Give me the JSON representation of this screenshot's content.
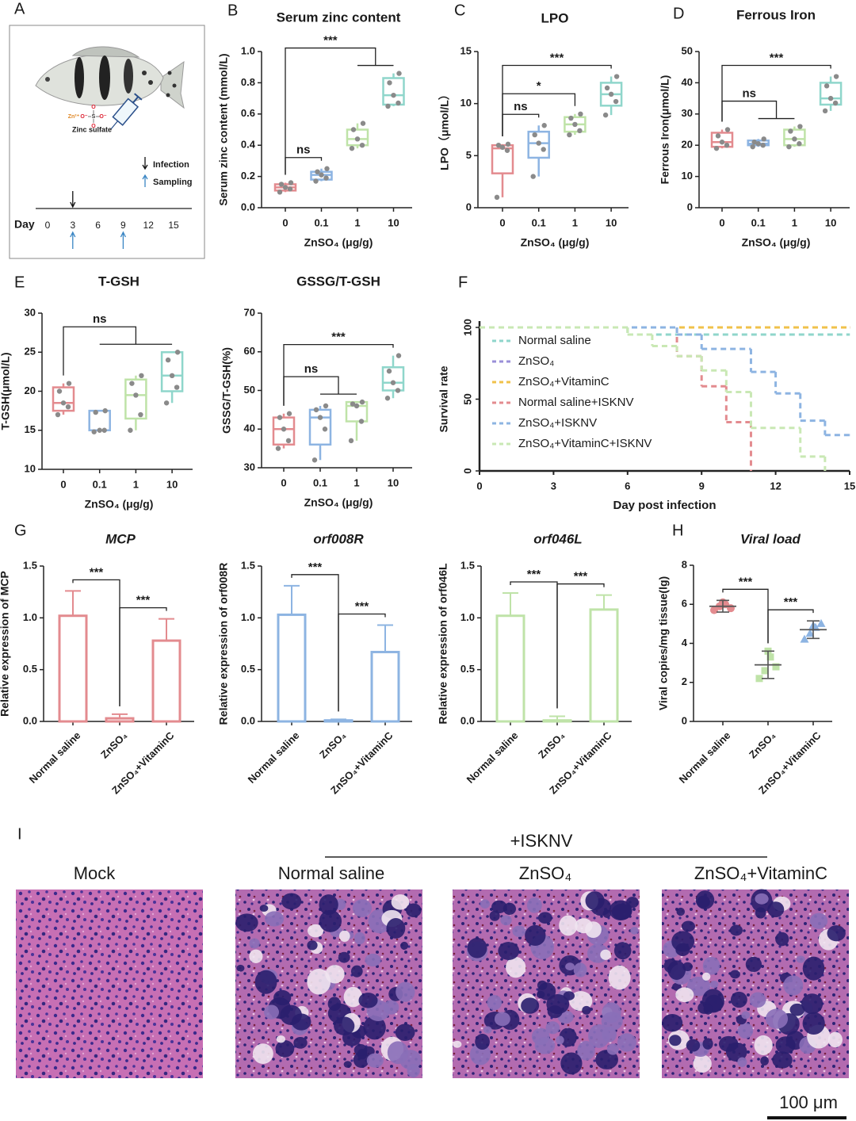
{
  "panel_labels": [
    "A",
    "B",
    "C",
    "D",
    "E",
    "F",
    "G",
    "H",
    "I"
  ],
  "panel_a": {
    "compound": "Zinc sulfate",
    "structure_labels": [
      "Zn²⁺",
      "O⁻",
      "S",
      "O⁻",
      "O",
      "O"
    ],
    "legend": [
      "Infection",
      "Sampling"
    ],
    "timeline_label": "Day",
    "days": [
      0,
      3,
      6,
      9,
      12,
      15
    ],
    "infection_days": [
      3
    ],
    "sampling_days": [
      3,
      9
    ]
  },
  "panel_i": {
    "group_label": "+ISKNV",
    "titles": [
      "Mock",
      "Normal saline",
      "ZnSO₄",
      "ZnSO₄+VitaminC"
    ],
    "scale_bar": "100 μm"
  },
  "chart_data": [
    {
      "type": "box",
      "title": "Serum zinc content",
      "ylabel": "Serum zinc content (mmol/L)",
      "xlabel": "ZnSO₄ (μg/g)",
      "categories": [
        "0",
        "0.1",
        "1",
        "10"
      ],
      "colors": [
        "#e38b8f",
        "#8db4e2",
        "#bfe3a8",
        "#8fd6cb"
      ],
      "ylim": [
        0,
        1
      ],
      "yticks": [
        {
          "value": 0,
          "label": "0.0"
        },
        0.2,
        0.4,
        0.6,
        0.8,
        {
          "value": 1,
          "label": "1.0"
        }
      ],
      "boxes": [
        {
          "min": 0.1,
          "q1": 0.11,
          "median": 0.13,
          "q3": 0.15,
          "max": 0.16,
          "points": [
            0.1,
            0.12,
            0.13,
            0.15,
            0.16
          ]
        },
        {
          "min": 0.17,
          "q1": 0.18,
          "median": 0.21,
          "q3": 0.23,
          "max": 0.25,
          "points": [
            0.17,
            0.19,
            0.21,
            0.23,
            0.25
          ]
        },
        {
          "min": 0.38,
          "q1": 0.4,
          "median": 0.44,
          "q3": 0.5,
          "max": 0.54,
          "points": [
            0.38,
            0.4,
            0.44,
            0.5,
            0.54
          ]
        },
        {
          "min": 0.65,
          "q1": 0.66,
          "median": 0.72,
          "q3": 0.83,
          "max": 0.86,
          "points": [
            0.65,
            0.67,
            0.72,
            0.8,
            0.86
          ]
        }
      ],
      "brackets": [
        {
          "text": "ns",
          "left": [
            0
          ],
          "right": [
            1
          ]
        },
        {
          "text": "***",
          "left": [
            0
          ],
          "right": [
            2,
            3
          ]
        }
      ]
    },
    {
      "type": "box",
      "title": "LPO",
      "ylabel": "LPO（μmol/L）",
      "xlabel": "ZnSO₄ (μg/g)",
      "categories": [
        "0",
        "0.1",
        "1",
        "10"
      ],
      "colors": [
        "#e38b8f",
        "#8db4e2",
        "#bfe3a8",
        "#8fd6cb"
      ],
      "ylim": [
        0,
        15
      ],
      "yticks": [
        0,
        5,
        10,
        15
      ],
      "boxes": [
        {
          "min": 1.0,
          "q1": 3.3,
          "median": 5.7,
          "q3": 6.0,
          "max": 6.1,
          "points": [
            1.0,
            5.5,
            5.8,
            6.0,
            6.1
          ]
        },
        {
          "min": 3.0,
          "q1": 4.8,
          "median": 6.2,
          "q3": 7.3,
          "max": 7.9,
          "points": [
            3.0,
            5.6,
            6.2,
            7.0,
            7.9
          ]
        },
        {
          "min": 7.0,
          "q1": 7.3,
          "median": 8.0,
          "q3": 8.7,
          "max": 9.0,
          "points": [
            7.0,
            7.4,
            8.0,
            8.6,
            9.0
          ]
        },
        {
          "min": 8.9,
          "q1": 9.8,
          "median": 10.9,
          "q3": 12.0,
          "max": 12.6,
          "points": [
            8.9,
            10.2,
            10.9,
            11.5,
            12.6
          ]
        }
      ],
      "brackets": [
        {
          "text": "ns",
          "left": [
            0
          ],
          "right": [
            1
          ]
        },
        {
          "text": "*",
          "left": [
            0
          ],
          "right": [
            2
          ]
        },
        {
          "text": "***",
          "left": [
            0
          ],
          "right": [
            3
          ]
        }
      ]
    },
    {
      "type": "box",
      "title": "Ferrous Iron",
      "ylabel": "Ferrous Iron(μmol/L)",
      "xlabel": "ZnSO₄ (μg/g)",
      "categories": [
        "0",
        "0.1",
        "1",
        "10"
      ],
      "colors": [
        "#e38b8f",
        "#8db4e2",
        "#bfe3a8",
        "#8fd6cb"
      ],
      "ylim": [
        0,
        50
      ],
      "yticks": [
        0,
        10,
        20,
        30,
        40,
        50
      ],
      "boxes": [
        {
          "min": 19,
          "q1": 19.5,
          "median": 21,
          "q3": 24,
          "max": 25,
          "points": [
            19,
            20,
            21,
            23,
            25
          ]
        },
        {
          "min": 19.5,
          "q1": 20,
          "median": 20.5,
          "q3": 21.5,
          "max": 22,
          "points": [
            19.5,
            20,
            20.5,
            21,
            22
          ]
        },
        {
          "min": 19.5,
          "q1": 20,
          "median": 22,
          "q3": 25,
          "max": 26,
          "points": [
            19.5,
            20.5,
            22,
            24.5,
            26
          ]
        },
        {
          "min": 31,
          "q1": 33,
          "median": 35,
          "q3": 40,
          "max": 42,
          "points": [
            31,
            33.5,
            35,
            39,
            42
          ]
        }
      ],
      "brackets": [
        {
          "text": "ns",
          "left": [
            0
          ],
          "right": [
            1,
            2
          ]
        },
        {
          "text": "***",
          "left": [
            0
          ],
          "right": [
            3
          ]
        }
      ]
    },
    {
      "type": "box",
      "title": "T-GSH",
      "ylabel": "T-GSH(μmol/L)",
      "xlabel": "ZnSO₄ (μg/g)",
      "categories": [
        "0",
        "0.1",
        "1",
        "10"
      ],
      "colors": [
        "#e38b8f",
        "#8db4e2",
        "#bfe3a8",
        "#8fd6cb"
      ],
      "ylim": [
        10,
        30
      ],
      "yticks": [
        10,
        15,
        20,
        25,
        30
      ],
      "boxes": [
        {
          "min": 17,
          "q1": 17.5,
          "median": 18.5,
          "q3": 20.5,
          "max": 21,
          "points": [
            17,
            18,
            18.5,
            20,
            21
          ]
        },
        {
          "min": 14.8,
          "q1": 15,
          "median": 15,
          "q3": 17.5,
          "max": 17.5,
          "points": [
            14.8,
            15,
            15,
            17.3,
            17.5
          ]
        },
        {
          "min": 15,
          "q1": 16.5,
          "median": 19.5,
          "q3": 21.5,
          "max": 22,
          "points": [
            15,
            17,
            19.5,
            21,
            22
          ]
        },
        {
          "min": 18.5,
          "q1": 20,
          "median": 22,
          "q3": 25,
          "max": 25,
          "points": [
            18.5,
            20.5,
            22,
            24,
            25
          ]
        }
      ],
      "brackets": [
        {
          "text": "ns",
          "left": [
            0
          ],
          "right": [
            1,
            2,
            3
          ]
        }
      ]
    },
    {
      "type": "box",
      "title": "GSSG/T-GSH",
      "ylabel": "GSSG/T-GSH(%)",
      "xlabel": "ZnSO₄ (μg/g)",
      "categories": [
        "0",
        "0.1",
        "1",
        "10"
      ],
      "colors": [
        "#e38b8f",
        "#8db4e2",
        "#bfe3a8",
        "#8fd6cb"
      ],
      "ylim": [
        30,
        70
      ],
      "yticks": [
        30,
        40,
        50,
        60,
        70
      ],
      "boxes": [
        {
          "min": 35,
          "q1": 36,
          "median": 40,
          "q3": 43,
          "max": 44,
          "points": [
            35,
            37,
            40,
            43,
            44
          ]
        },
        {
          "min": 32,
          "q1": 36,
          "median": 43,
          "q3": 45,
          "max": 46,
          "points": [
            32,
            40,
            43,
            45,
            46
          ]
        },
        {
          "min": 37,
          "q1": 42,
          "median": 46,
          "q3": 47,
          "max": 47,
          "points": [
            37,
            42,
            46,
            46.5,
            47
          ]
        },
        {
          "min": 48,
          "q1": 50,
          "median": 52,
          "q3": 56,
          "max": 59,
          "points": [
            48,
            50,
            52,
            55,
            59
          ]
        }
      ],
      "brackets": [
        {
          "text": "ns",
          "left": [
            0
          ],
          "right": [
            1,
            2
          ]
        },
        {
          "text": "***",
          "left": [
            0
          ],
          "right": [
            3
          ]
        }
      ]
    },
    {
      "type": "step",
      "ylabel": "Survival rate",
      "xlabel": "Day post infection",
      "xlim": [
        0,
        15
      ],
      "xticks": [
        0,
        3,
        6,
        9,
        12,
        15
      ],
      "ylim": [
        0,
        100
      ],
      "yticks": [
        0,
        50,
        100
      ],
      "dashed": true,
      "legend": "upper left",
      "series": [
        {
          "name": "Normal saline",
          "color": "#8fd6cb",
          "x": [
            0,
            6,
            15
          ],
          "values": [
            100,
            95,
            95
          ]
        },
        {
          "name": "ZnSO₄",
          "color": "#9a8fd8",
          "x": [
            0,
            15
          ],
          "values": [
            100,
            100
          ]
        },
        {
          "name": "ZnSO₄+VitaminC",
          "color": "#f0c24b",
          "x": [
            0,
            15
          ],
          "values": [
            100,
            100
          ]
        },
        {
          "name": "Normal saline+ISKNV",
          "color": "#e38b8f",
          "x": [
            0,
            8,
            9,
            10,
            11
          ],
          "values": [
            100,
            80,
            59,
            34,
            0
          ]
        },
        {
          "name": "ZnSO₄+ISKNV",
          "color": "#8db4e2",
          "x": [
            0,
            8,
            9,
            11,
            12,
            13,
            14,
            15
          ],
          "values": [
            100,
            95,
            85,
            69,
            54,
            35,
            25,
            25
          ]
        },
        {
          "name": "ZnSO₄+VitaminC+ISKNV",
          "color": "#c9e8b4",
          "x": [
            0,
            6,
            7,
            8,
            9,
            10,
            11,
            13,
            14
          ],
          "values": [
            100,
            95,
            87,
            80,
            70,
            55,
            30,
            10,
            0
          ]
        }
      ]
    },
    {
      "type": "bar",
      "title": "MCP",
      "title_style": "italic",
      "ylabel": "Relative expression of MCP",
      "categories": [
        "Normal saline",
        "ZnSO₄",
        "ZnSO₄+VitaminC"
      ],
      "values": [
        1.02,
        0.03,
        0.78
      ],
      "errors": [
        0.24,
        0.04,
        0.21
      ],
      "color": "#e38b8f",
      "ylim": [
        0,
        1.5
      ],
      "yticks": [
        {
          "value": 0,
          "label": "0.0"
        },
        0.5,
        {
          "value": 1,
          "label": "1.0"
        },
        1.5
      ],
      "brackets": [
        {
          "text": "***",
          "left": [
            0
          ],
          "right": [
            1
          ]
        },
        {
          "text": "***",
          "left": [
            1
          ],
          "right": [
            2
          ]
        }
      ]
    },
    {
      "type": "bar",
      "title": "orf008R",
      "title_style": "italic",
      "ylabel": "Relative expression of orf008R",
      "categories": [
        "Normal saline",
        "ZnSO₄",
        "ZnSO₄+VitaminC"
      ],
      "values": [
        1.03,
        0.01,
        0.67
      ],
      "errors": [
        0.28,
        0.01,
        0.26
      ],
      "color": "#8db4e2",
      "ylim": [
        0,
        1.5
      ],
      "yticks": [
        {
          "value": 0,
          "label": "0.0"
        },
        0.5,
        {
          "value": 1,
          "label": "1.0"
        },
        1.5
      ],
      "brackets": [
        {
          "text": "***",
          "left": [
            0
          ],
          "right": [
            1
          ]
        },
        {
          "text": "***",
          "left": [
            1
          ],
          "right": [
            2
          ]
        }
      ]
    },
    {
      "type": "bar",
      "title": "orf046L",
      "title_style": "italic",
      "ylabel": "Relative expression of orf046L",
      "categories": [
        "Normal saline",
        "ZnSO₄",
        "ZnSO₄+VitaminC"
      ],
      "values": [
        1.02,
        0.01,
        1.08
      ],
      "errors": [
        0.22,
        0.04,
        0.14
      ],
      "color": "#bfe3a8",
      "ylim": [
        0,
        1.5
      ],
      "yticks": [
        {
          "value": 0,
          "label": "0.0"
        },
        0.5,
        {
          "value": 1,
          "label": "1.0"
        },
        1.5
      ],
      "brackets": [
        {
          "text": "***",
          "left": [
            0
          ],
          "right": [
            1
          ]
        },
        {
          "text": "***",
          "left": [
            1
          ],
          "right": [
            2
          ]
        }
      ]
    },
    {
      "type": "dot",
      "title": "Viral load",
      "title_style": "italic",
      "ylabel": "Viral copies/mg tissue(lg)",
      "categories": [
        "Normal saline",
        "ZnSO₄",
        "ZnSO₄+VitaminC"
      ],
      "ylim": [
        0,
        8
      ],
      "yticks": [
        0,
        2,
        4,
        6,
        8
      ],
      "groups": [
        {
          "points": [
            5.7,
            5.9,
            6.0,
            5.8,
            6.1
          ],
          "mean": 5.9,
          "sd": 0.3,
          "color": "#e38b8f",
          "marker": "circle"
        },
        {
          "points": [
            2.2,
            2.6,
            3.3,
            2.8,
            3.6
          ],
          "mean": 2.9,
          "sd": 0.7,
          "color": "#bfe3a8",
          "marker": "square"
        },
        {
          "points": [
            4.2,
            4.5,
            4.8,
            5.0,
            4.9
          ],
          "mean": 4.7,
          "sd": 0.45,
          "color": "#8db4e2",
          "marker": "triangle"
        }
      ],
      "brackets": [
        {
          "text": "***",
          "left": [
            0
          ],
          "right": [
            1
          ]
        },
        {
          "text": "***",
          "left": [
            1
          ],
          "right": [
            2
          ]
        }
      ]
    }
  ]
}
